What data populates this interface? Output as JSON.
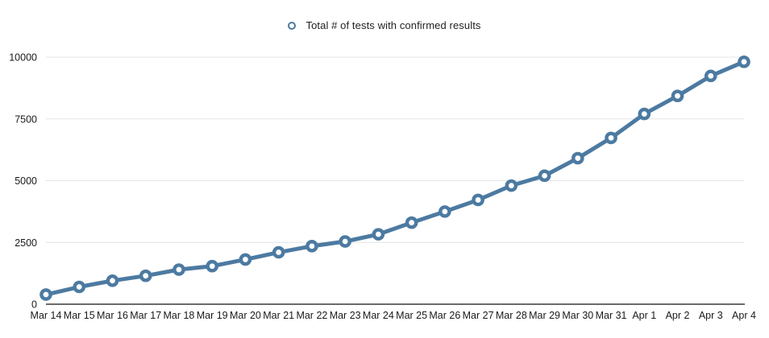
{
  "chart_data": {
    "type": "line",
    "title": "",
    "legend": "Total # of tests with confirmed results",
    "legend_position": "top-center",
    "xlabel": "",
    "ylabel": "",
    "ylim": [
      0,
      10000
    ],
    "yticks": [
      0,
      2500,
      5000,
      7500,
      10000
    ],
    "grid": "horizontal",
    "marker": "open-circle",
    "categories": [
      "Mar 14",
      "Mar 15",
      "Mar 16",
      "Mar 17",
      "Mar 18",
      "Mar 19",
      "Mar 20",
      "Mar 21",
      "Mar 22",
      "Mar 23",
      "Mar 24",
      "Mar 25",
      "Mar 26",
      "Mar 27",
      "Mar 28",
      "Mar 29",
      "Mar 30",
      "Mar 31",
      "Apr 1",
      "Apr 2",
      "Apr 3",
      "Apr 4"
    ],
    "series": [
      {
        "name": "Total # of tests with confirmed results",
        "values": [
          390,
          700,
          950,
          1150,
          1400,
          1540,
          1810,
          2100,
          2350,
          2540,
          2830,
          3300,
          3750,
          4220,
          4800,
          5200,
          5910,
          6730,
          7700,
          8430,
          9240,
          9810
        ]
      }
    ],
    "colors": {
      "line": "#4C7AA1",
      "marker_fill": "#FFFFFF",
      "grid": "#E4E4E4",
      "axis": "#111111",
      "text": "#1A1A1A"
    }
  }
}
